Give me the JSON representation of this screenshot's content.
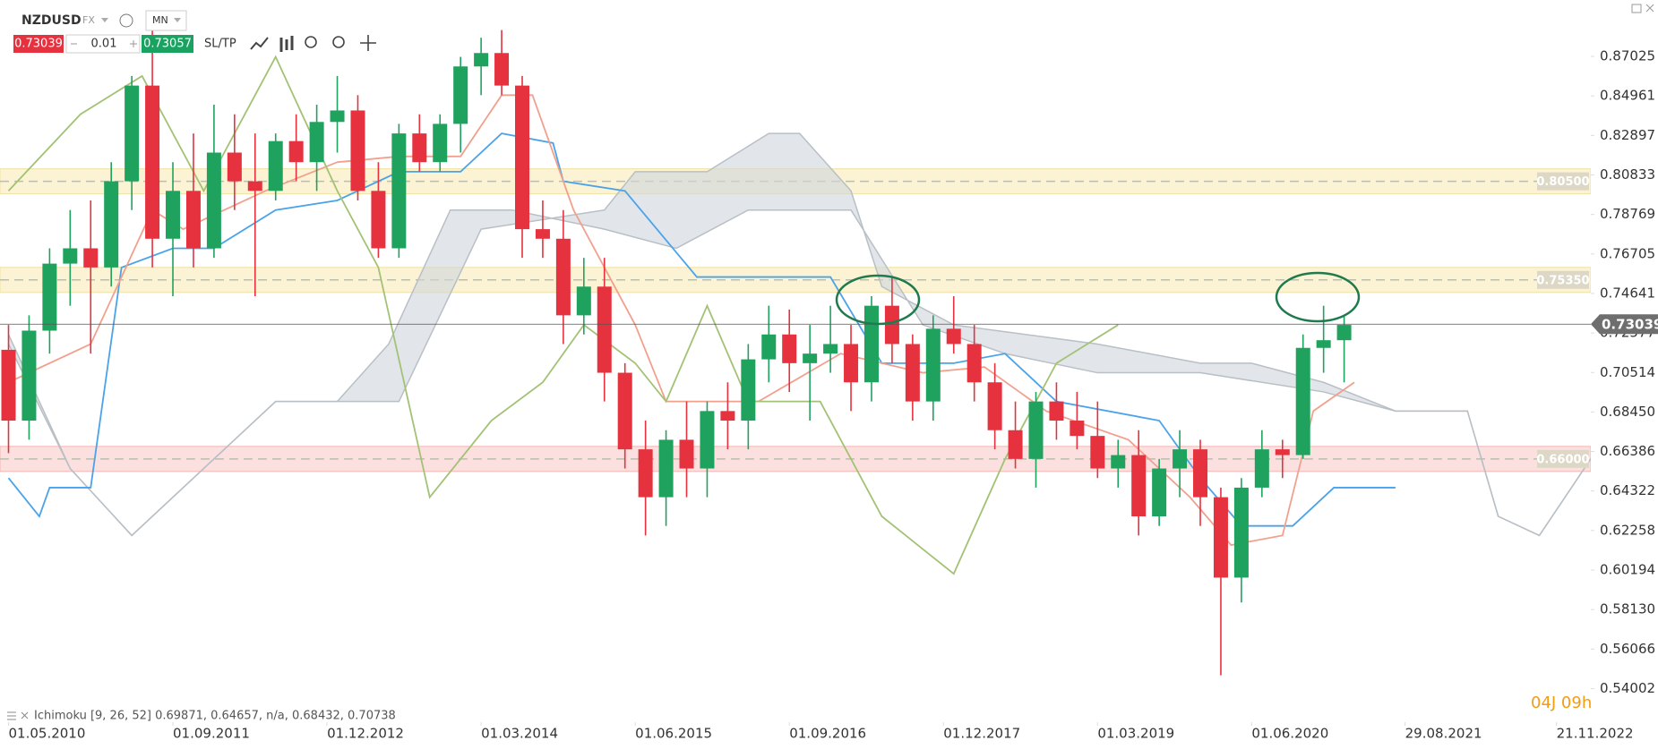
{
  "header": {
    "symbol": "NZDUSD",
    "market": "FX",
    "timeframe": "MN",
    "bid": "0.73039",
    "lot": "0.01",
    "ask": "0.73057",
    "sltp": "SL/TP"
  },
  "chart_data": {
    "type": "candlestick",
    "up_color": "#1fa25e",
    "down_color": "#e5323e",
    "x": [
      "01.05.2010",
      "01.07.2010",
      "01.09.2010",
      "01.11.2010",
      "01.01.2011",
      "01.03.2011",
      "01.05.2011",
      "01.07.2011",
      "01.09.2011",
      "01.11.2011",
      "01.01.2012",
      "01.03.2012",
      "01.05.2012",
      "01.07.2012",
      "01.09.2012",
      "01.11.2012",
      "01.01.2013",
      "01.03.2013",
      "01.05.2013",
      "01.07.2013",
      "01.09.2013",
      "01.11.2013",
      "01.01.2014",
      "01.03.2014",
      "01.05.2014",
      "01.07.2014",
      "01.09.2014",
      "01.11.2014",
      "01.01.2015",
      "01.03.2015",
      "01.05.2015",
      "01.07.2015",
      "01.09.2015",
      "01.11.2015",
      "01.01.2016",
      "01.03.2016",
      "01.05.2016",
      "01.07.2016",
      "01.09.2016",
      "01.11.2016",
      "01.01.2017",
      "01.03.2017",
      "01.05.2017",
      "01.07.2017",
      "01.09.2017",
      "01.11.2017",
      "01.01.2018",
      "01.03.2018",
      "01.05.2018",
      "01.07.2018",
      "01.09.2018",
      "01.11.2018",
      "01.01.2019",
      "01.03.2019",
      "01.05.2019",
      "01.07.2019",
      "01.09.2019",
      "01.11.2019",
      "01.01.2020",
      "01.03.2020",
      "01.05.2020",
      "01.07.2020",
      "01.09.2020",
      "01.11.2020",
      "01.01.2021",
      "01.03.2021"
    ],
    "candles": [
      [
        0.717,
        0.73,
        0.663,
        0.68
      ],
      [
        0.68,
        0.735,
        0.67,
        0.727
      ],
      [
        0.727,
        0.77,
        0.715,
        0.762
      ],
      [
        0.762,
        0.79,
        0.74,
        0.77
      ],
      [
        0.77,
        0.795,
        0.715,
        0.76
      ],
      [
        0.76,
        0.815,
        0.75,
        0.805
      ],
      [
        0.805,
        0.86,
        0.79,
        0.855
      ],
      [
        0.855,
        0.884,
        0.76,
        0.775
      ],
      [
        0.775,
        0.815,
        0.745,
        0.8
      ],
      [
        0.8,
        0.83,
        0.76,
        0.77
      ],
      [
        0.77,
        0.845,
        0.765,
        0.82
      ],
      [
        0.82,
        0.84,
        0.79,
        0.805
      ],
      [
        0.805,
        0.83,
        0.745,
        0.8
      ],
      [
        0.8,
        0.83,
        0.795,
        0.826
      ],
      [
        0.826,
        0.84,
        0.805,
        0.815
      ],
      [
        0.815,
        0.845,
        0.8,
        0.836
      ],
      [
        0.836,
        0.86,
        0.82,
        0.842
      ],
      [
        0.842,
        0.85,
        0.795,
        0.8
      ],
      [
        0.8,
        0.815,
        0.765,
        0.77
      ],
      [
        0.77,
        0.835,
        0.765,
        0.83
      ],
      [
        0.83,
        0.84,
        0.81,
        0.815
      ],
      [
        0.815,
        0.84,
        0.81,
        0.835
      ],
      [
        0.835,
        0.87,
        0.82,
        0.865
      ],
      [
        0.865,
        0.88,
        0.85,
        0.872
      ],
      [
        0.872,
        0.884,
        0.85,
        0.855
      ],
      [
        0.855,
        0.86,
        0.765,
        0.78
      ],
      [
        0.78,
        0.795,
        0.765,
        0.775
      ],
      [
        0.775,
        0.79,
        0.72,
        0.735
      ],
      [
        0.735,
        0.765,
        0.725,
        0.75
      ],
      [
        0.75,
        0.765,
        0.69,
        0.705
      ],
      [
        0.705,
        0.71,
        0.655,
        0.665
      ],
      [
        0.665,
        0.68,
        0.62,
        0.64
      ],
      [
        0.64,
        0.675,
        0.625,
        0.67
      ],
      [
        0.67,
        0.69,
        0.64,
        0.655
      ],
      [
        0.655,
        0.69,
        0.64,
        0.685
      ],
      [
        0.685,
        0.7,
        0.665,
        0.68
      ],
      [
        0.68,
        0.72,
        0.665,
        0.712
      ],
      [
        0.712,
        0.74,
        0.7,
        0.725
      ],
      [
        0.725,
        0.738,
        0.695,
        0.71
      ],
      [
        0.71,
        0.73,
        0.68,
        0.715
      ],
      [
        0.715,
        0.74,
        0.705,
        0.72
      ],
      [
        0.72,
        0.73,
        0.685,
        0.7
      ],
      [
        0.7,
        0.745,
        0.69,
        0.74
      ],
      [
        0.74,
        0.755,
        0.71,
        0.72
      ],
      [
        0.72,
        0.725,
        0.68,
        0.69
      ],
      [
        0.69,
        0.735,
        0.68,
        0.728
      ],
      [
        0.728,
        0.745,
        0.715,
        0.72
      ],
      [
        0.72,
        0.73,
        0.69,
        0.7
      ],
      [
        0.7,
        0.71,
        0.665,
        0.675
      ],
      [
        0.675,
        0.69,
        0.655,
        0.66
      ],
      [
        0.66,
        0.695,
        0.645,
        0.69
      ],
      [
        0.69,
        0.7,
        0.67,
        0.68
      ],
      [
        0.68,
        0.695,
        0.665,
        0.672
      ],
      [
        0.672,
        0.69,
        0.65,
        0.655
      ],
      [
        0.655,
        0.67,
        0.645,
        0.662
      ],
      [
        0.662,
        0.675,
        0.62,
        0.63
      ],
      [
        0.63,
        0.66,
        0.625,
        0.655
      ],
      [
        0.655,
        0.675,
        0.64,
        0.665
      ],
      [
        0.665,
        0.67,
        0.625,
        0.64
      ],
      [
        0.64,
        0.645,
        0.547,
        0.598
      ],
      [
        0.598,
        0.65,
        0.585,
        0.645
      ],
      [
        0.645,
        0.675,
        0.64,
        0.665
      ],
      [
        0.665,
        0.67,
        0.65,
        0.662
      ],
      [
        0.662,
        0.725,
        0.66,
        0.718
      ],
      [
        0.718,
        0.74,
        0.705,
        0.722
      ],
      [
        0.722,
        0.735,
        0.7,
        0.73
      ]
    ],
    "ylim": [
      0.5225,
      0.8997
    ],
    "yticks": [
      0.87025,
      0.84961,
      0.82897,
      0.80833,
      0.78769,
      0.76705,
      0.74641,
      0.72577,
      0.70514,
      {
        "value": 0.6845,
        "label": "0.68450"
      },
      0.66386,
      0.64322,
      0.62258,
      0.60194,
      {
        "value": 0.5813,
        "label": "0.58130"
      },
      0.56066,
      0.54002
    ],
    "xticks": [
      "01.05.2010",
      "01.09.2011",
      "01.12.2012",
      "01.03.2014",
      "01.06.2015",
      "01.09.2016",
      "01.12.2017",
      "01.03.2019",
      "01.06.2020",
      "29.08.2021",
      "21.11.2022"
    ],
    "cloud": {
      "color": "#cfd6dc",
      "upper": {
        "x": [
          "01.05.2010",
          "01.11.2010",
          "01.05.2011",
          "01.01.2012",
          "01.07.2012",
          "01.07.2013",
          "01.03.2014",
          "01.03.2015",
          "01.06.2015",
          "01.01.2016",
          "01.07.2016",
          "01.10.2016",
          "01.03.2017",
          "01.06.2017",
          "01.01.2018",
          "01.03.2019",
          "01.01.2020",
          "01.06.2020",
          "01.01.2021",
          "01.08.2021",
          "01.03.2022",
          "01.06.2022",
          "01.10.2022",
          "01.04.2023"
        ],
        "values": [
          0.725,
          0.655,
          0.62,
          0.66,
          0.69,
          0.69,
          0.78,
          0.79,
          0.81,
          0.81,
          0.83,
          0.83,
          0.8,
          0.75,
          0.73,
          0.72,
          0.71,
          0.71,
          0.7,
          0.685,
          0.685,
          0.63,
          0.62,
          0.668
        ]
      },
      "lower": {
        "x": [
          "01.05.2010",
          "01.11.2010",
          "01.05.2011",
          "01.01.2012",
          "01.07.2012",
          "01.01.2013",
          "01.06.2013",
          "01.12.2013",
          "01.06.2014",
          "01.03.2015",
          "01.10.2015",
          "01.05.2016",
          "01.03.2017",
          "01.10.2017",
          "01.06.2018",
          "01.03.2019",
          "01.01.2020",
          "01.01.2021",
          "01.08.2021",
          "01.03.2022",
          "01.06.2022",
          "01.10.2022",
          "01.04.2023"
        ],
        "values": [
          0.72,
          0.655,
          0.62,
          0.66,
          0.69,
          0.69,
          0.72,
          0.79,
          0.79,
          0.78,
          0.77,
          0.79,
          0.79,
          0.73,
          0.715,
          0.705,
          0.705,
          0.695,
          0.685,
          0.685,
          0.63,
          0.62,
          0.668
        ]
      }
    },
    "ichimoku_lines": [
      {
        "color": "#4aa3ea",
        "x": [
          "01.05.2010",
          "01.08.2010",
          "01.09.2010",
          "01.01.2011",
          "01.04.2011",
          "01.09.2011",
          "01.01.2012",
          "01.07.2012",
          "01.01.2013",
          "01.07.2013",
          "01.01.2014",
          "01.05.2014",
          "01.10.2014",
          "01.11.2014",
          "01.05.2015",
          "01.12.2015",
          "01.01.2017",
          "01.06.2017",
          "01.01.2018",
          "01.06.2018",
          "01.11.2018",
          "01.09.2019",
          "01.01.2020",
          "01.05.2020",
          "01.10.2020",
          "01.02.2021",
          "01.08.2021"
        ],
        "values": [
          0.65,
          0.63,
          0.645,
          0.645,
          0.76,
          0.77,
          0.77,
          0.79,
          0.795,
          0.81,
          0.81,
          0.83,
          0.825,
          0.805,
          0.8,
          0.755,
          0.755,
          0.71,
          0.71,
          0.715,
          0.69,
          0.68,
          0.65,
          0.625,
          0.625,
          0.645,
          0.645
        ]
      },
      {
        "color": "#f2a08e",
        "x": [
          "01.05.2010",
          "01.01.2011",
          "01.07.2011",
          "01.10.2011",
          "01.06.2012",
          "01.01.2013",
          "01.07.2013",
          "01.01.2014",
          "01.05.2014",
          "01.08.2014",
          "01.12.2014",
          "01.06.2015",
          "01.09.2015",
          "01.06.2016",
          "01.02.2017",
          "01.10.2017",
          "01.04.2018",
          "01.10.2018",
          "01.06.2019",
          "01.12.2019",
          "01.04.2020",
          "01.09.2020",
          "01.12.2020",
          "01.04.2021"
        ],
        "values": [
          0.7,
          0.72,
          0.79,
          0.78,
          0.8,
          0.815,
          0.818,
          0.818,
          0.85,
          0.85,
          0.79,
          0.73,
          0.69,
          0.69,
          0.715,
          0.705,
          0.708,
          0.685,
          0.67,
          0.64,
          0.615,
          0.62,
          0.685,
          0.7
        ]
      },
      {
        "color": "#a3c275",
        "x": [
          "01.05.2010",
          "01.12.2010",
          "01.06.2011",
          "01.12.2011",
          "01.07.2012",
          "01.01.2013",
          "01.05.2013",
          "01.10.2013",
          "01.04.2014",
          "01.09.2014",
          "01.01.2015",
          "01.06.2015",
          "01.09.2015",
          "01.01.2016",
          "01.05.2016",
          "01.12.2016",
          "01.06.2017",
          "01.01.2018",
          "01.06.2018",
          "01.11.2018",
          "01.05.2019"
        ],
        "values": [
          0.8,
          0.84,
          0.86,
          0.8,
          0.87,
          0.8,
          0.76,
          0.64,
          0.68,
          0.7,
          0.73,
          0.71,
          0.69,
          0.74,
          0.69,
          0.69,
          0.63,
          0.6,
          0.66,
          0.71,
          0.73
        ]
      }
    ],
    "levels": [
      {
        "value": 0.805,
        "label": "0.80500",
        "color": "#fbf3d3",
        "edge": "#efe2a4"
      },
      {
        "value": 0.7535,
        "label": "0.75350",
        "color": "#fbf3d3",
        "edge": "#efe2a4"
      },
      {
        "value": 0.66,
        "label": "0.66000",
        "color": "#fbe0df",
        "edge": "#f2b6b4"
      }
    ],
    "last_price": {
      "value": 0.73039,
      "label": "0.73039"
    },
    "indicator_legend": "Ichimoku [9, 26, 52] 0.69871, 0.64657, n/a, 0.68432, 0.70738",
    "countdown": "04J 09h"
  }
}
